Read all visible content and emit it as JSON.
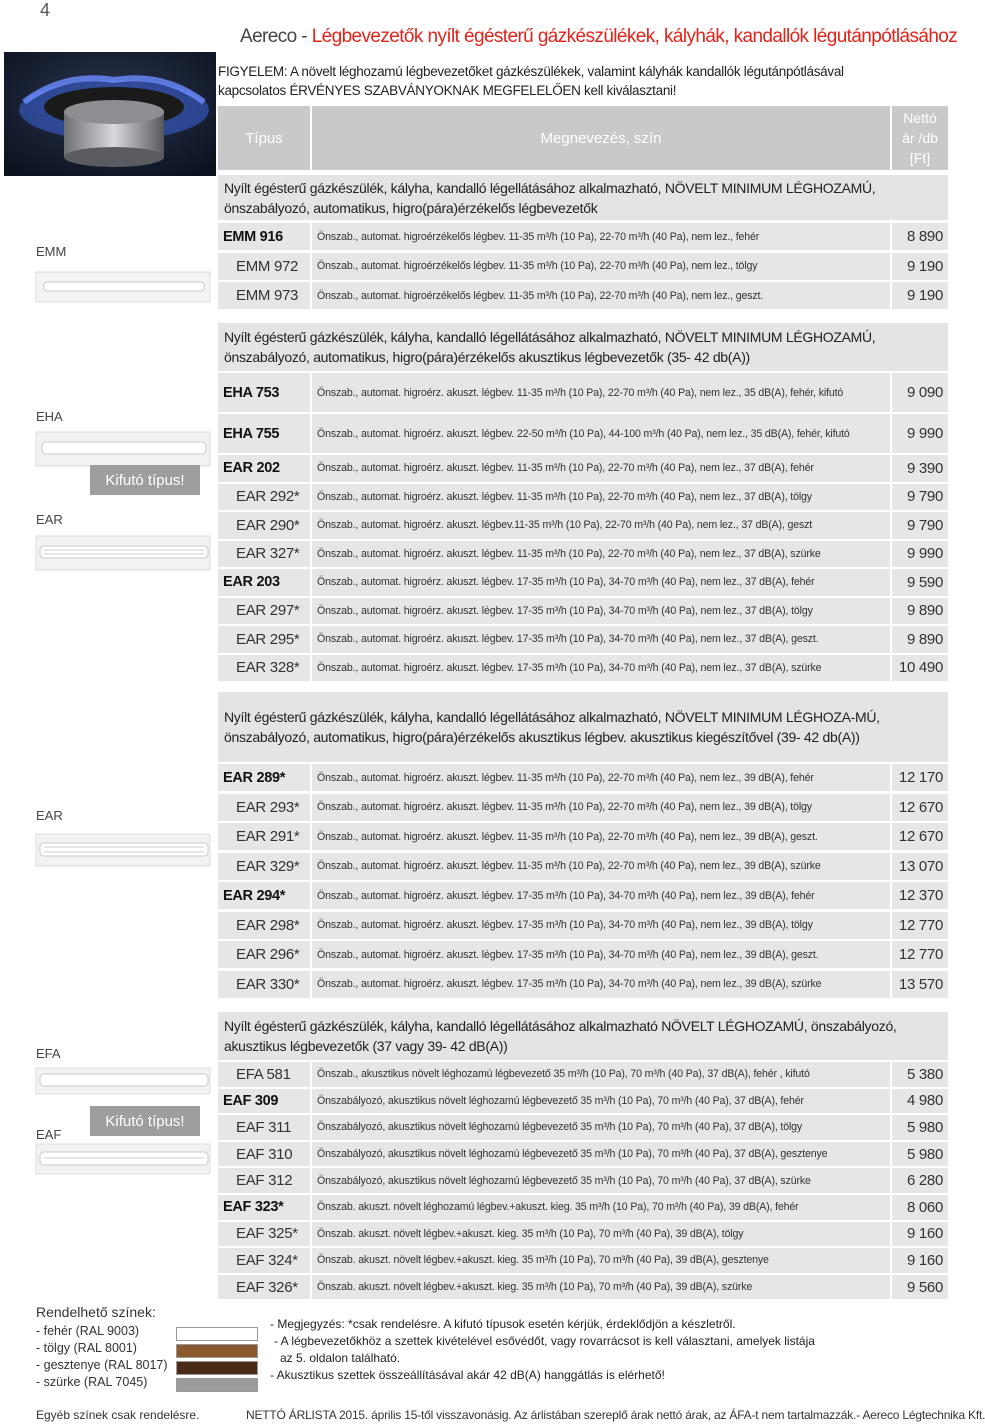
{
  "page_number": "4",
  "header": {
    "brand": "Aereco - ",
    "title": "Légbevezetők nyílt égésterű gázkészülékek, kályhák, kandallók légutánpótlásához"
  },
  "warning": "FIGYELEM: A növelt  léghozamú légbevezetőket gázkészülékek, valamint kályhák kandallók légutánpótlásával kapcsolatos ÉRVÉNYES SZABVÁNYOKNAK MEGFELELŐEN kell kiválasztani!",
  "table_header": {
    "type": "Típus",
    "name": "Megnevezés, szín",
    "price": "Nettó ár /db [Ft]"
  },
  "sections": [
    {
      "heading": "Nyílt égésterű gázkészülék, kályha, kandalló légellátásához alkalmazható, NÖVELT MINIMUM LÉGHOZAMÚ, önszabályozó, automatikus, higro(pára)érzékelős légbevezetők",
      "rows": [
        {
          "type": "EMM 916",
          "emphasis": true,
          "desc": "Önszab., automat. higroérzékelős légbev. 11-35 m³/h (10 Pa), 22-70 m³/h (40 Pa), nem lez., fehér",
          "price": "8 890"
        },
        {
          "type": "EMM 972",
          "desc": "Önszab., automat. higroérzékelős  légbev. 11-35 m³/h (10 Pa), 22-70 m³/h (40 Pa), nem lez., tölgy",
          "price": "9 190"
        },
        {
          "type": "EMM 973",
          "desc": "Önszab., automat. higroérzékelős légbev. 11-35 m³/h (10 Pa), 22-70 m³/h (40 Pa), nem lez., geszt.",
          "price": "9 190"
        }
      ]
    },
    {
      "heading": "Nyílt égésterű gázkészülék, kályha, kandalló légellátásához alkalmazható, NÖVELT MINIMUM LÉGHOZAMÚ, önszabályozó, automatikus, higro(pára)érzékelős akusztikus légbevezetők (35- 42 db(A))",
      "rows": [
        {
          "type": "EHA 753",
          "emphasis": true,
          "desc": "Önszab., automat. higroérz. akuszt. légbev. 11-35 m³/h (10 Pa), 22-70 m³/h (40 Pa), nem lez., 35 dB(A), fehér, kifutó",
          "price": "9 090"
        },
        {
          "type": "EHA 755",
          "emphasis": true,
          "desc": "Önszab., automat. higroérz. akuszt. légbev. 22-50 m³/h (10 Pa), 44-100 m³/h (40 Pa), nem lez., 35 dB(A), fehér, kifutó",
          "price": "9 990"
        },
        {
          "type": "EAR 202",
          "emphasis": true,
          "desc": "Önszab., automat. higroérz. akuszt. légbev. 11-35 m³/h (10 Pa), 22-70 m³/h (40 Pa), nem lez., 37 dB(A), fehér",
          "price": "9 390"
        },
        {
          "type": "EAR 292*",
          "desc": "Önszab., automat. higroérz. akuszt. légbev. 11-35 m³/h (10 Pa), 22-70 m³/h (40 Pa), nem lez., 37 dB(A), tölgy",
          "price": "9 790"
        },
        {
          "type": "EAR 290*",
          "desc": "Önszab., automat. higroérz. akuszt. légbev.11-35 m³/h (10 Pa), 22-70 m³/h (40 Pa), nem lez., 37 dB(A), geszt",
          "price": "9 790"
        },
        {
          "type": "EAR 327*",
          "desc": "Önszab., automat. higroérz. akuszt. légbev. 11-35 m³/h (10 Pa), 22-70 m³/h (40 Pa), nem lez., 37 dB(A), szürke",
          "price": "9 990"
        },
        {
          "type": "EAR 203",
          "emphasis": true,
          "desc": "Önszab., automat. higroérz. akuszt. légbev. 17-35 m³/h (10 Pa), 34-70 m³/h (40 Pa), nem lez., 37 dB(A), fehér",
          "price": "9 590"
        },
        {
          "type": "EAR 297*",
          "desc": "Önszab., automat. higroérz. akuszt. légbev. 17-35 m³/h (10 Pa), 34-70 m³/h (40 Pa), nem lez., 37 dB(A), tölgy",
          "price": "9 890"
        },
        {
          "type": "EAR 295*",
          "desc": "Önszab., automat. higroérz. akuszt. légbev. 17-35 m³/h (10 Pa), 34-70 m³/h (40 Pa), nem lez., 37 dB(A), geszt.",
          "price": "9 890"
        },
        {
          "type": "EAR 328*",
          "desc": "Önszab., automat. higroérz. akuszt. légbev. 17-35 m³/h (10 Pa), 34-70 m³/h (40 Pa), nem lez., 37 dB(A), szürke",
          "price": "10 490"
        }
      ]
    },
    {
      "heading": "Nyílt égésterű gázkészülék, kályha, kandalló légellátásához alkalmazható, NÖVELT MINIMUM LÉGHOZA-MÚ, önszabályozó, automatikus, higro(pára)érzékelős akusztikus légbev. akusztikus kiegészítővel (39- 42 db(A))",
      "rows": [
        {
          "type": "EAR 289*",
          "emphasis": true,
          "desc": "Önszab., automat. higroérz. akuszt. légbev. 11-35 m³/h (10 Pa), 22-70 m³/h (40 Pa), nem lez., 39 dB(A), fehér",
          "price": "12 170"
        },
        {
          "type": "EAR 293*",
          "desc": "Önszab., automat. higroérz. akuszt. légbev. 11-35 m³/h (10 Pa), 22-70 m³/h (40 Pa), nem lez., 39 dB(A), tölgy",
          "price": "12 670"
        },
        {
          "type": "EAR 291*",
          "desc": "Önszab., automat. higroérz. akuszt. légbev. 11-35 m³/h (10 Pa), 22-70 m³/h (40 Pa), nem lez., 39 dB(A), geszt.",
          "price": "12 670"
        },
        {
          "type": "EAR 329*",
          "desc": "Önszab., automat. higroérz. akuszt. légbev. 11-35 m³/h (10 Pa), 22-70 m³/h (40 Pa), nem lez., 39 dB(A), szürke",
          "price": "13 070"
        },
        {
          "type": "EAR 294*",
          "emphasis": true,
          "desc": "Önszab., automat. higroérz. akuszt. légbev. 17-35 m³/h (10 Pa), 34-70 m³/h (40 Pa), nem lez., 39 dB(A), fehér",
          "price": "12 370"
        },
        {
          "type": "EAR 298*",
          "desc": "Önszab., automat. higroérz. akuszt. légbev. 17-35 m³/h (10 Pa), 34-70 m³/h (40 Pa), nem lez., 39 dB(A), tölgy",
          "price": "12 770"
        },
        {
          "type": "EAR 296*",
          "desc": "Önszab., automat. higroérz. akuszt. légbev. 17-35 m³/h (10 Pa), 34-70 m³/h (40 Pa), nem lez., 39 dB(A), geszt.",
          "price": "12 770"
        },
        {
          "type": "EAR 330*",
          "desc": "Önszab., automat. higroérz. akuszt. légbev. 17-35 m³/h (10 Pa), 34-70 m³/h (40 Pa), nem lez., 39 dB(A), szürke",
          "price": "13 570"
        }
      ]
    },
    {
      "heading": "Nyílt égésterű gázkészülék, kályha, kandalló légellátásához alkalmazható NÖVELT LÉGHOZAMÚ, önszabályozó, akusztikus légbevezetők (37 vagy 39- 42 dB(A))",
      "rows": [
        {
          "type": "EFA 581",
          "desc": "Önszab., akusztikus növelt léghozamú légbevezető 35 m³/h (10 Pa), 70 m³/h (40 Pa), 37 dB(A), fehér , kifutó",
          "price": "5 380"
        },
        {
          "type": "EAF 309",
          "emphasis": true,
          "desc": "Önszabályozó, akusztikus növelt léghozamú légbevezető 35 m³/h (10 Pa), 70 m³/h (40 Pa), 37 dB(A), fehér",
          "price": "4 980"
        },
        {
          "type": "EAF 311",
          "desc": "Önszabályozó, akusztikus növelt léghozamú légbevezető 35 m³/h (10 Pa), 70 m³/h (40 Pa), 37 dB(A), tölgy",
          "price": "5 980"
        },
        {
          "type": "EAF 310",
          "desc": "Önszabályozó, akusztikus növelt léghozamú légbevezető 35 m³/h (10 Pa), 70 m³/h (40 Pa), 37 dB(A), gesztenye",
          "price": "5 980"
        },
        {
          "type": "EAF 312",
          "desc": "Önszabályozó, akusztikus növelt léghozamú légbevezető 35 m³/h (10 Pa), 70 m³/h (40 Pa), 37 dB(A), szürke",
          "price": "6 280"
        },
        {
          "type": "EAF 323*",
          "emphasis": true,
          "desc": "Önszab. akuszt. növelt léghozamú légbev.+akuszt. kieg. 35 m³/h (10 Pa), 70 m³/h (40 Pa), 39 dB(A), fehér",
          "price": "8 060"
        },
        {
          "type": "EAF 325*",
          "desc": "Önszab. akuszt. növelt  légbev.+akuszt. kieg. 35 m³/h (10 Pa), 70 m³/h (40 Pa), 39 dB(A), tölgy",
          "price": "9 160"
        },
        {
          "type": "EAF 324*",
          "desc": "Önszab. akuszt. növelt légbev.+akuszt. kieg. 35 m³/h (10 Pa), 70 m³/h (40 Pa), 39 dB(A), gesztenye",
          "price": "9 160"
        },
        {
          "type": "EAF 326*",
          "desc": "Önszab. akuszt. növelt légbev.+akuszt. kieg. 35 m³/h (10 Pa), 70 m³/h (40 Pa), 39 dB(A), szürke",
          "price": "9 560"
        }
      ]
    }
  ],
  "side_labels": [
    "EMM",
    "EHA",
    "EAR",
    "EAR",
    "EFA",
    "EAF"
  ],
  "badges": [
    "Kifutó típus!",
    "Kifutó típus!"
  ],
  "colors": {
    "title": "Rendelhető színek:",
    "items": [
      "- fehér (RAL 9003)",
      "- tölgy (RAL 8001)",
      "- gesztenye (RAL 8017)",
      "- szürke (RAL 7045)"
    ]
  },
  "notes": [
    "- Megjegyzés: *csak rendelésre. A kifutó típusok esetén kérjük, érdeklődjön a készletről.",
    "- A légbevezetőkhöz a szettek kivételével esővédőt, vagy rovarrácsot is kell választani,  amelyek listája",
    "az 5. oldalon található.",
    "- Akusztikus szettek összeállításával akár 42 dB(A) hanggátlás is elérhető!"
  ],
  "footer": {
    "left": "Egyéb színek csak rendelésre.",
    "right": "NETTÓ ÁRLISTA 2015. április 15-től visszavonásig.  Az árlistában szereplő árak nettó árak, az ÁFA-t nem tartalmazzák.- Aereco Légtechnika Kft."
  }
}
